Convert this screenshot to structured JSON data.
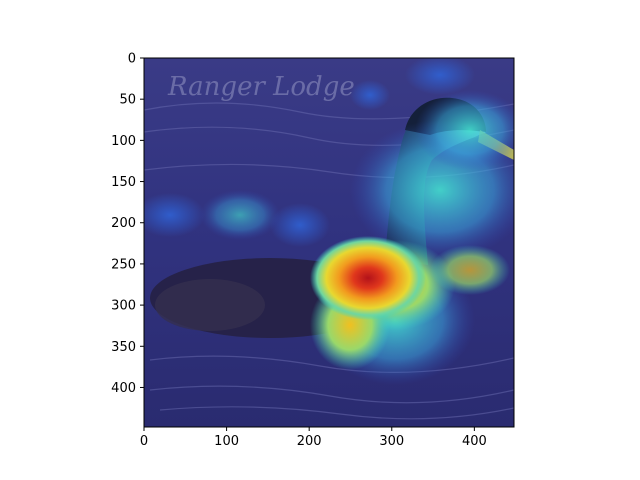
{
  "figure": {
    "image_description_hidden": "",
    "x_ticks": [
      0,
      100,
      200,
      300,
      400
    ],
    "y_ticks": [
      0,
      50,
      100,
      150,
      200,
      250,
      300,
      350,
      400
    ],
    "x_range": [
      0,
      448
    ],
    "y_range": [
      0,
      448
    ],
    "colormap": "jet",
    "overlay": "heatmap over photo",
    "watermark_text": "Ranger Lodge"
  },
  "colors": {
    "background": "#ffffff",
    "water_dark": "#2e2f7a",
    "heat_hot": "#d62a1f",
    "heat_warm": "#f0c020",
    "heat_cool": "#3ad6c8"
  }
}
